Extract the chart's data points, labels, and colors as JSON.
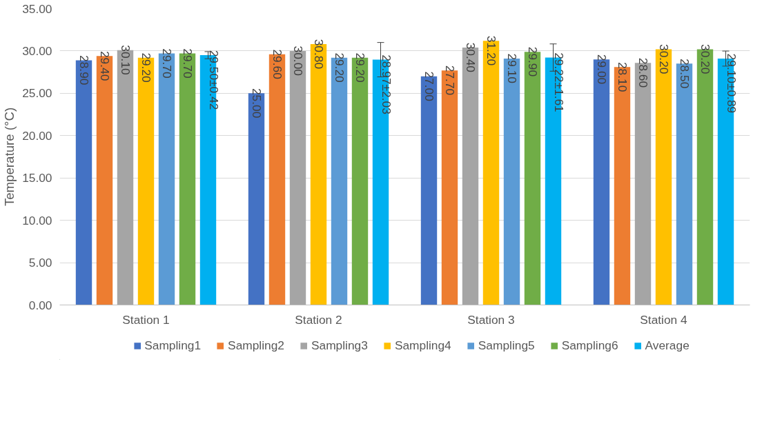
{
  "chart_data": {
    "type": "bar",
    "ylabel": "Temperature (°C)",
    "categories": [
      "Station 1",
      "Station 2",
      "Station 3",
      "Station 4"
    ],
    "series": [
      {
        "name": "Sampling1",
        "color": "#4472c4",
        "values": [
          28.9,
          25.0,
          27.0,
          29.0
        ],
        "value_labels": [
          "28.90",
          "25.00",
          "27.00",
          "29.00"
        ]
      },
      {
        "name": "Sampling2",
        "color": "#ed7d31",
        "values": [
          29.4,
          29.6,
          27.7,
          28.1
        ],
        "value_labels": [
          "29.40",
          "29.60",
          "27.70",
          "28.10"
        ]
      },
      {
        "name": "Sampling3",
        "color": "#a5a5a5",
        "values": [
          30.1,
          30.0,
          30.4,
          28.6
        ],
        "value_labels": [
          "30.10",
          "30.00",
          "30.40",
          "28.60"
        ]
      },
      {
        "name": "Sampling4",
        "color": "#ffc000",
        "values": [
          29.2,
          30.8,
          31.2,
          30.2
        ],
        "value_labels": [
          "29.20",
          "30.80",
          "31.20",
          "30.20"
        ]
      },
      {
        "name": "Sampling5",
        "color": "#5b9bd5",
        "values": [
          29.7,
          29.2,
          29.1,
          28.5
        ],
        "value_labels": [
          "29.70",
          "29.20",
          "29.10",
          "28.50"
        ]
      },
      {
        "name": "Sampling6",
        "color": "#70ad47",
        "values": [
          29.7,
          29.2,
          29.9,
          30.2
        ],
        "value_labels": [
          "29.70",
          "29.20",
          "29.90",
          "30.20"
        ]
      },
      {
        "name": "Average",
        "color": "#00b0f0",
        "values": [
          29.5,
          28.97,
          29.22,
          29.1
        ],
        "errors": [
          0.42,
          2.03,
          1.61,
          0.89
        ],
        "value_labels": [
          "29.50±0.42",
          "28.97±2.03",
          "29.22±1.61",
          "29.10±0.89"
        ]
      }
    ],
    "ylim": [
      0,
      35
    ],
    "yticks": [
      {
        "value": 0,
        "label": "0.00"
      },
      {
        "value": 5,
        "label": "5.00"
      },
      {
        "value": 10,
        "label": "10.00"
      },
      {
        "value": 15,
        "label": "15.00"
      },
      {
        "value": 20,
        "label": "20.00"
      },
      {
        "value": 25,
        "label": "25.00"
      },
      {
        "value": 30,
        "label": "30.00"
      },
      {
        "value": 35,
        "label": "35.00"
      }
    ],
    "grid": "y",
    "legend": "bottom"
  }
}
